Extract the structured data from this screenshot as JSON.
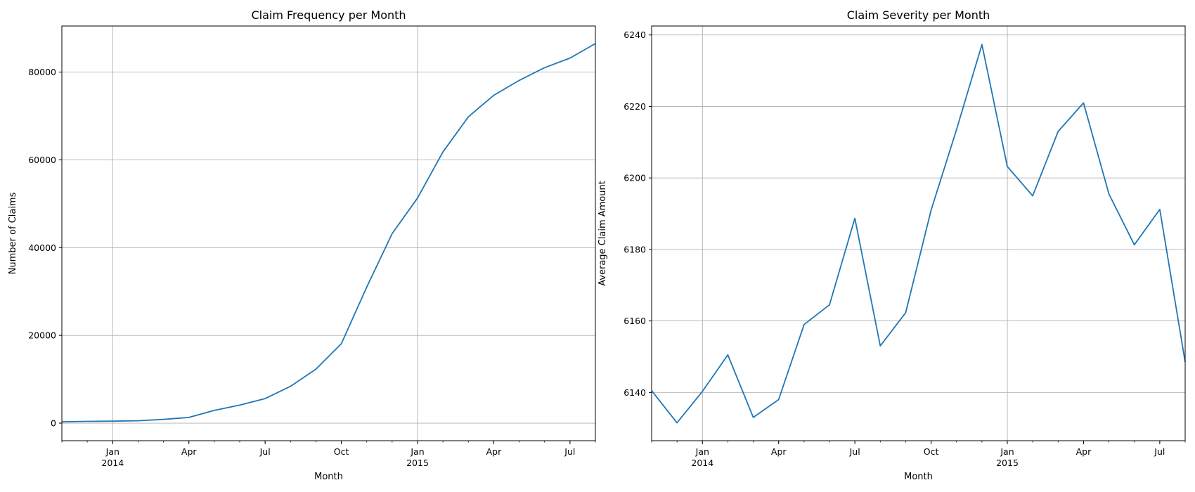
{
  "colors": {
    "series": "#1f77b4",
    "grid": "#b0b0b0"
  },
  "chart_data": [
    {
      "type": "line",
      "title": "Claim Frequency per Month",
      "xlabel": "Month",
      "ylabel": "Number of Claims",
      "grid": true,
      "x": [
        "2013-11",
        "2013-12",
        "2014-01",
        "2014-02",
        "2014-03",
        "2014-04",
        "2014-05",
        "2014-06",
        "2014-07",
        "2014-08",
        "2014-09",
        "2014-10",
        "2014-11",
        "2014-12",
        "2015-01",
        "2015-02",
        "2015-03",
        "2015-04",
        "2015-05",
        "2015-06",
        "2015-07",
        "2015-08"
      ],
      "series": [
        {
          "values": [
            300,
            400,
            450,
            550,
            850,
            1300,
            2900,
            4100,
            5600,
            8400,
            12300,
            18100,
            31000,
            43200,
            51300,
            61800,
            69800,
            74700,
            78100,
            81000,
            83200,
            86500
          ]
        }
      ],
      "xlim": [
        "2013-11",
        "2015-08"
      ],
      "ylim": [
        -4000,
        90500
      ],
      "yticks": [
        0,
        20000,
        40000,
        60000,
        80000
      ],
      "xticks": [
        {
          "date": "2014-01",
          "label": "Jan",
          "sublabel": "2014"
        },
        {
          "date": "2014-04",
          "label": "Apr"
        },
        {
          "date": "2014-07",
          "label": "Jul"
        },
        {
          "date": "2014-10",
          "label": "Oct"
        },
        {
          "date": "2015-01",
          "label": "Jan",
          "sublabel": "2015"
        },
        {
          "date": "2015-04",
          "label": "Apr"
        },
        {
          "date": "2015-07",
          "label": "Jul"
        }
      ]
    },
    {
      "type": "line",
      "title": "Claim Severity per Month",
      "xlabel": "Month",
      "ylabel": "Average Claim Amount",
      "grid": true,
      "x": [
        "2013-11",
        "2013-12",
        "2014-01",
        "2014-02",
        "2014-03",
        "2014-04",
        "2014-05",
        "2014-06",
        "2014-07",
        "2014-08",
        "2014-09",
        "2014-10",
        "2014-11",
        "2014-12",
        "2015-01",
        "2015-02",
        "2015-03",
        "2015-04",
        "2015-05",
        "2015-06",
        "2015-07",
        "2015-08"
      ],
      "series": [
        {
          "values": [
            6140.5,
            6131.5,
            6140.3,
            6150.5,
            6133.0,
            6138.0,
            6159.0,
            6164.5,
            6188.7,
            6153.0,
            6162.3,
            6191.0,
            6213.5,
            6237.3,
            6203.2,
            6195.0,
            6213.0,
            6221.0,
            6195.5,
            6181.3,
            6191.2,
            6148.5
          ]
        }
      ],
      "xlim": [
        "2013-11",
        "2015-08"
      ],
      "ylim": [
        6126.5,
        6242.5
      ],
      "yticks": [
        6140,
        6160,
        6180,
        6200,
        6220,
        6240
      ],
      "xticks": [
        {
          "date": "2014-01",
          "label": "Jan",
          "sublabel": "2014"
        },
        {
          "date": "2014-04",
          "label": "Apr"
        },
        {
          "date": "2014-07",
          "label": "Jul"
        },
        {
          "date": "2014-10",
          "label": "Oct"
        },
        {
          "date": "2015-01",
          "label": "Jan",
          "sublabel": "2015"
        },
        {
          "date": "2015-04",
          "label": "Apr"
        },
        {
          "date": "2015-07",
          "label": "Jul"
        }
      ]
    }
  ]
}
